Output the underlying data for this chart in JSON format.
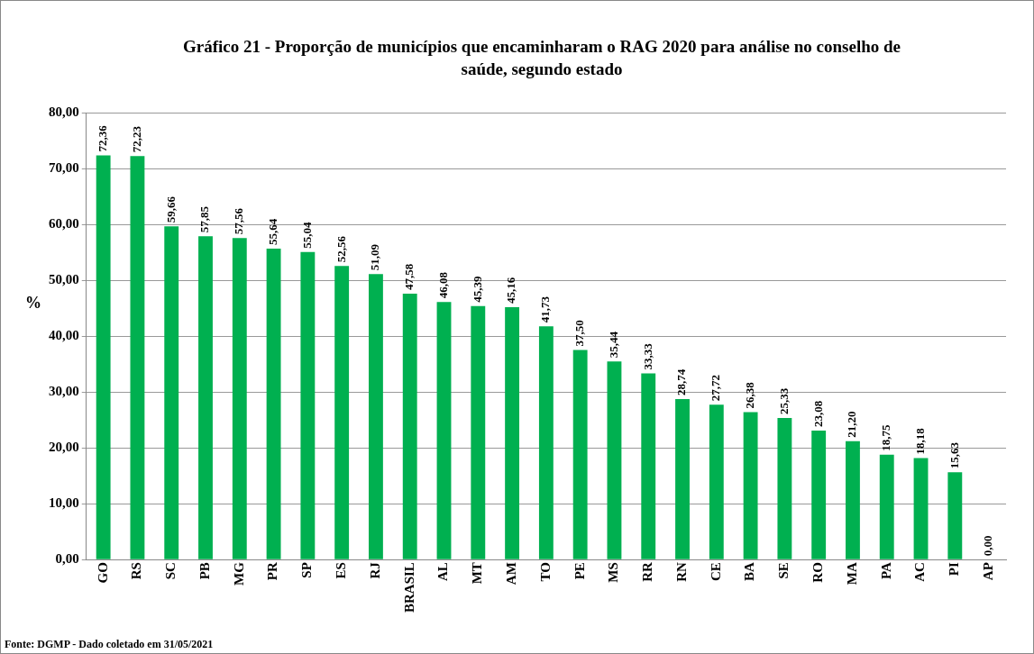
{
  "chart_data": {
    "type": "bar",
    "title": "Gráfico 21 - Proporção  de municípios que encaminharam o RAG 2020 para análise no conselho de saúde,  segundo estado",
    "ylabel": "%",
    "categories": [
      "GO",
      "RS",
      "SC",
      "PB",
      "MG",
      "PR",
      "SP",
      "ES",
      "RJ",
      "BRASIL",
      "AL",
      "MT",
      "AM",
      "TO",
      "PE",
      "MS",
      "RR",
      "RN",
      "CE",
      "BA",
      "SE",
      "RO",
      "MA",
      "PA",
      "AC",
      "PI",
      "AP"
    ],
    "values": [
      72.36,
      72.23,
      59.66,
      57.85,
      57.56,
      55.64,
      55.04,
      52.56,
      51.09,
      47.58,
      46.08,
      45.39,
      45.16,
      41.73,
      37.5,
      35.44,
      33.33,
      28.74,
      27.72,
      26.38,
      25.33,
      23.08,
      21.2,
      18.75,
      18.18,
      15.63,
      0.0
    ],
    "value_labels": [
      "72,36",
      "72,23",
      "59,66",
      "57,85",
      "57,56",
      "55,64",
      "55,04",
      "52,56",
      "51,09",
      "47,58",
      "46,08",
      "45,39",
      "45,16",
      "41,73",
      "37,50",
      "35,44",
      "33,33",
      "28,74",
      "27,72",
      "26,38",
      "25,33",
      "23,08",
      "21,20",
      "18,75",
      "18,18",
      "15,63",
      "0,00"
    ],
    "color": "#00b050",
    "ylim": [
      0,
      80
    ],
    "yticks": [
      {
        "value": 0,
        "label": "0,00"
      },
      {
        "value": 10,
        "label": "10,00"
      },
      {
        "value": 20,
        "label": "20,00"
      },
      {
        "value": 30,
        "label": "30,00"
      },
      {
        "value": 40,
        "label": "40,00"
      },
      {
        "value": 50,
        "label": "50,00"
      },
      {
        "value": 60,
        "label": "60,00"
      },
      {
        "value": 70,
        "label": "70,00"
      },
      {
        "value": 80,
        "label": "80,00"
      }
    ],
    "grid": "y",
    "legend": false,
    "annotations": [
      "Fonte: DGMP - Dado coletado em 31/05/2021"
    ]
  }
}
